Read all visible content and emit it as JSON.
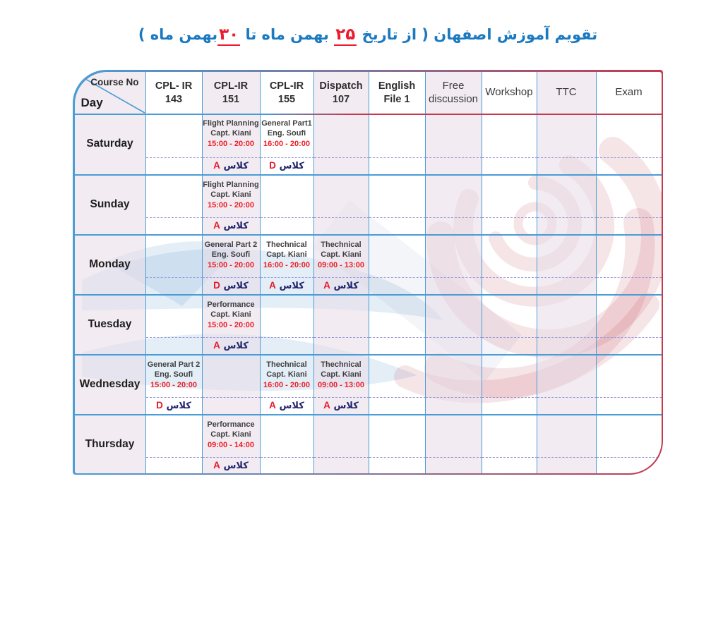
{
  "title": {
    "segments": [
      {
        "text": "تقویم آموزش اصفهان ( از تاریخ ",
        "style": "blue"
      },
      {
        "text": "۲۵",
        "style": "red-underline"
      },
      {
        "text": " بهمن ماه تا ",
        "style": "blue"
      },
      {
        "text": "۳۰",
        "style": "red-underline"
      },
      {
        "text": "بهمن ماه )",
        "style": "blue"
      }
    ]
  },
  "colors": {
    "title_blue": "#1b79c0",
    "accent_red": "#ec1b2e",
    "grid_blue": "#4a9cd6",
    "frame_red": "#c23a50",
    "class_navy": "#22276e",
    "column_tint": "#f4eef4"
  },
  "table": {
    "corner": {
      "course_no": "Course No",
      "day": "Day"
    },
    "columns": [
      {
        "id": "cpl-ir-143",
        "line1": "CPL- IR",
        "line2": "143",
        "style": "bold"
      },
      {
        "id": "cpl-ir-151",
        "line1": "CPL-IR",
        "line2": "151",
        "style": "bold"
      },
      {
        "id": "cpl-ir-155",
        "line1": "CPL-IR",
        "line2": "155",
        "style": "bold"
      },
      {
        "id": "dispatch-107",
        "line1": "Dispatch",
        "line2": "107",
        "style": "bold"
      },
      {
        "id": "english-file-1",
        "line1": "English",
        "line2": "File 1",
        "style": "bold"
      },
      {
        "id": "free-discussion",
        "line1": "Free",
        "line2": "discussion",
        "style": "light"
      },
      {
        "id": "workshop",
        "line1": "Workshop",
        "line2": "",
        "style": "light"
      },
      {
        "id": "ttc",
        "line1": "TTC",
        "line2": "",
        "style": "light"
      },
      {
        "id": "exam",
        "line1": "Exam",
        "line2": "",
        "style": "light"
      }
    ],
    "class_word": "کلاس",
    "rows": [
      {
        "day": "Saturday",
        "cells": [
          null,
          {
            "course": "Flight Planning",
            "instructor": "Capt. Kiani",
            "time": "15:00 - 20:00",
            "class_letter": "A"
          },
          {
            "course": "General Part1",
            "instructor": "Eng. Soufi",
            "time": "16:00 - 20:00",
            "class_letter": "D"
          },
          null,
          null,
          null,
          null,
          null,
          null
        ]
      },
      {
        "day": "Sunday",
        "cells": [
          null,
          {
            "course": "Flight Planning",
            "instructor": "Capt. Kiani",
            "time": "15:00 - 20:00",
            "class_letter": "A"
          },
          null,
          null,
          null,
          null,
          null,
          null,
          null
        ]
      },
      {
        "day": "Monday",
        "cells": [
          null,
          {
            "course": "General Part 2",
            "instructor": "Eng. Soufi",
            "time": "15:00 - 20:00",
            "class_letter": "D"
          },
          {
            "course": "Thechnical",
            "instructor": "Capt. Kiani",
            "time": "16:00 - 20:00",
            "class_letter": "A"
          },
          {
            "course": "Thechnical",
            "instructor": "Capt. Kiani",
            "time": "09:00 - 13:00",
            "class_letter": "A"
          },
          null,
          null,
          null,
          null,
          null
        ]
      },
      {
        "day": "Tuesday",
        "cells": [
          null,
          {
            "course": "Performance",
            "instructor": "Capt. Kiani",
            "time": "15:00 - 20:00",
            "class_letter": "A"
          },
          null,
          null,
          null,
          null,
          null,
          null,
          null
        ]
      },
      {
        "day": "Wednesday",
        "cells": [
          {
            "course": "General Part 2",
            "instructor": "Eng. Soufi",
            "time": "15:00 - 20:00",
            "class_letter": "D"
          },
          null,
          {
            "course": "Thechnical",
            "instructor": "Capt. Kiani",
            "time": "16:00 - 20:00",
            "class_letter": "A"
          },
          {
            "course": "Thechnical",
            "instructor": "Capt. Kiani",
            "time": "09:00 - 13:00",
            "class_letter": "A"
          },
          null,
          null,
          null,
          null,
          null
        ]
      },
      {
        "day": "Thursday",
        "cells": [
          null,
          {
            "course": "Performance",
            "instructor": "Capt. Kiani",
            "time": "09:00 - 14:00",
            "class_letter": "A"
          },
          null,
          null,
          null,
          null,
          null,
          null,
          null
        ]
      }
    ]
  }
}
